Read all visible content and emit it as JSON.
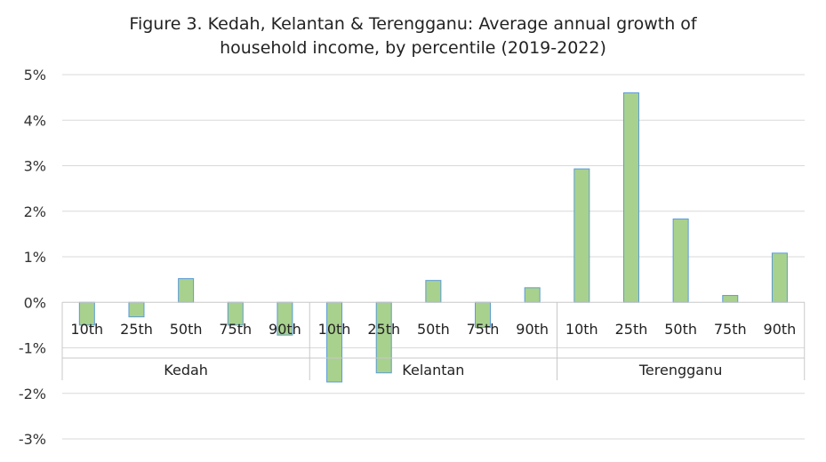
{
  "chart_data": {
    "type": "bar",
    "title_lines": [
      "Figure 3. Kedah, Kelantan & Terengganu: Average annual growth of",
      "household income, by percentile (2019-2022)"
    ],
    "groups": [
      {
        "name": "Kedah",
        "categories": [
          "10th",
          "25th",
          "50th",
          "75th",
          "90th"
        ],
        "values": [
          -0.5,
          -0.32,
          0.52,
          -0.5,
          -0.72
        ]
      },
      {
        "name": "Kelantan",
        "categories": [
          "10th",
          "25th",
          "50th",
          "75th",
          "90th"
        ],
        "values": [
          -1.75,
          -1.55,
          0.48,
          -0.55,
          0.32
        ]
      },
      {
        "name": "Terengganu",
        "categories": [
          "10th",
          "25th",
          "50th",
          "75th",
          "90th"
        ],
        "values": [
          2.93,
          4.6,
          1.83,
          0.15,
          1.08
        ]
      }
    ],
    "ylim": [
      -3,
      5
    ],
    "yticks": [
      5,
      4,
      3,
      2,
      1,
      0,
      -1,
      -2,
      -3
    ],
    "ytick_labels": [
      "5%",
      "4%",
      "3%",
      "2%",
      "1%",
      "0%",
      "-1%",
      "-2%",
      "-3%"
    ],
    "grid": true,
    "bar_fill": "#a9d18e",
    "bar_stroke": "#5b9bd5"
  }
}
